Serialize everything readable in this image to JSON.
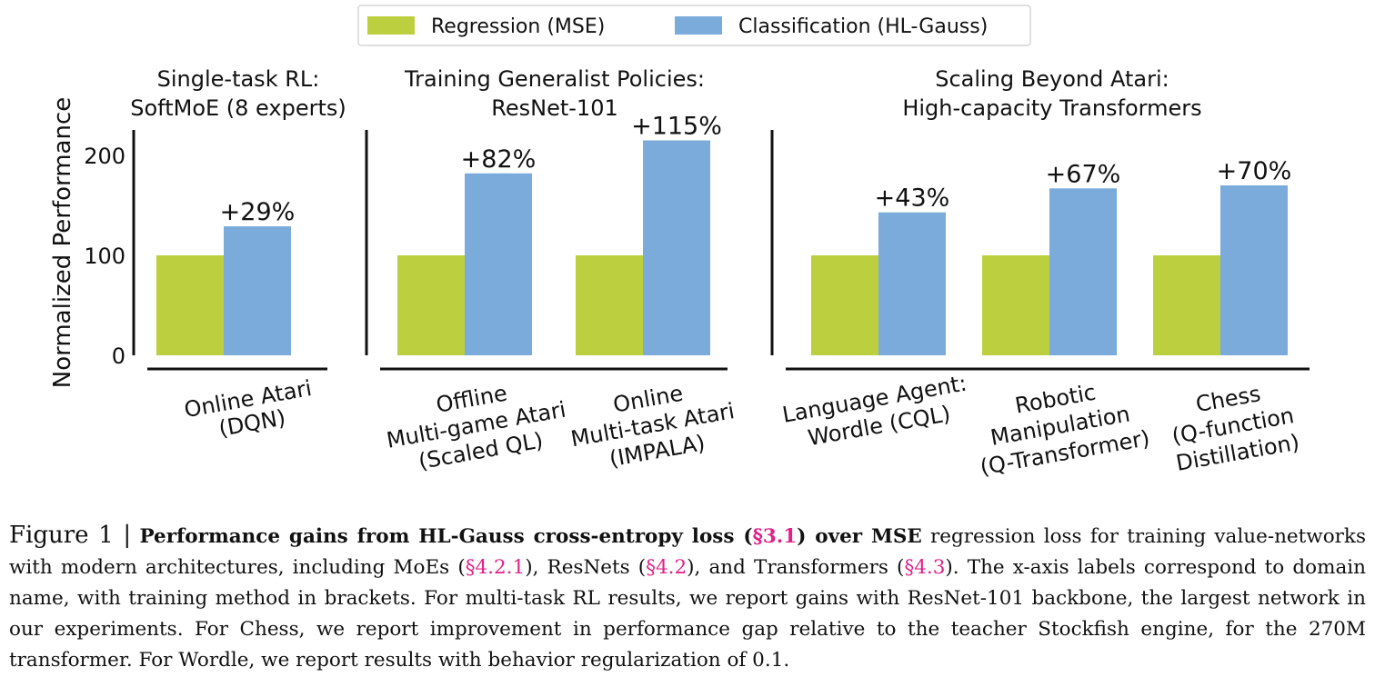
{
  "legend": {
    "items": [
      {
        "label": "Regression (MSE)",
        "color": "#bccf3e"
      },
      {
        "label": "Classification (HL-Gauss)",
        "color": "#7aabdb"
      }
    ],
    "placement": "top-center"
  },
  "chart_data": {
    "type": "bar",
    "ylabel": "Normalized Performance",
    "ylim": [
      0,
      230
    ],
    "yticks": [
      0,
      100,
      200
    ],
    "grid": false,
    "colors": {
      "regression": "#bccf3e",
      "classification": "#7aabdb"
    },
    "panels": [
      {
        "title": [
          "Single-task RL:",
          "SoftMoE (8 experts)"
        ],
        "groups": [
          {
            "label": [
              "Online Atari",
              "(DQN)"
            ],
            "regression": 100,
            "classification": 129,
            "annotation": "+29%"
          }
        ]
      },
      {
        "title": [
          "Training Generalist Policies:",
          "ResNet-101"
        ],
        "groups": [
          {
            "label": [
              "Offline",
              "Multi-game Atari",
              "(Scaled QL)"
            ],
            "regression": 100,
            "classification": 182,
            "annotation": "+82%"
          },
          {
            "label": [
              "Online",
              "Multi-task Atari",
              "(IMPALA)"
            ],
            "regression": 100,
            "classification": 215,
            "annotation": "+115%"
          }
        ]
      },
      {
        "title": [
          "Scaling Beyond Atari:",
          "High-capacity Transformers"
        ],
        "groups": [
          {
            "label": [
              "Language Agent:",
              "Wordle (CQL)"
            ],
            "regression": 100,
            "classification": 143,
            "annotation": "+43%"
          },
          {
            "label": [
              "Robotic",
              "Manipulation",
              "(Q-Transformer)"
            ],
            "regression": 100,
            "classification": 167,
            "annotation": "+67%"
          },
          {
            "label": [
              "Chess",
              "(Q-function",
              "Distillation)"
            ],
            "regression": 100,
            "classification": 170,
            "annotation": "+70%"
          }
        ]
      }
    ]
  },
  "caption": {
    "figure_label": "Figure 1 |",
    "bold_start": "Performance gains from HL-Gauss cross-entropy loss (",
    "ref1": "§3.1",
    "bold_end": ") over MSE",
    "text1": " regression loss for training value-networks with modern architectures, including MoEs (",
    "ref2": "§4.2.1",
    "text2": "), ResNets (",
    "ref3": "§4.2",
    "text3": "), and Transformers (",
    "ref4": "§4.3",
    "text4": "). The x-axis labels correspond to domain name, with training method in brackets. For multi-task RL results, we report gains with ResNet-101 backbone, the largest network in our experiments. For Chess, we report improvement in performance gap relative to the teacher Stockfish engine, for the 270M transformer. For Wordle, we report results with behavior regularization of 0.1."
  }
}
